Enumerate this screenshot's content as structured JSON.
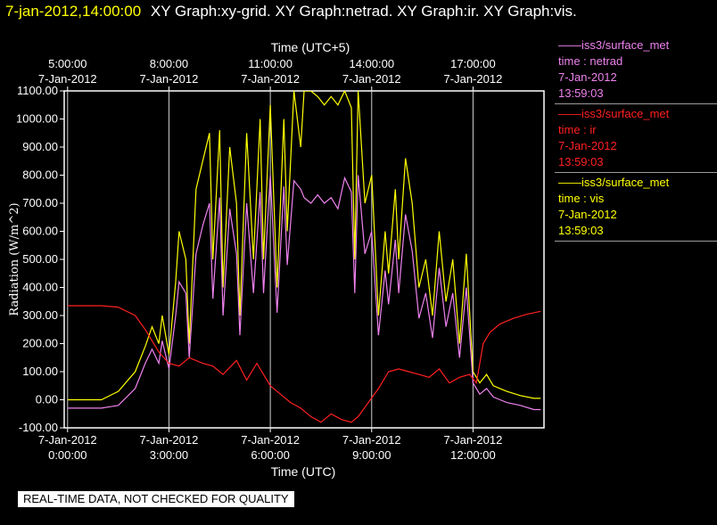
{
  "header": {
    "stamp": "7-jan-2012,14:00:00",
    "titles": "XY Graph:xy-grid.  XY Graph:netrad.  XY Graph:ir.  XY Graph:vis."
  },
  "notice": "REAL-TIME DATA, NOT CHECKED FOR QUALITY",
  "legend": [
    {
      "source": "iss3/surface_met",
      "variable": "time : netrad",
      "date": "7-Jan-2012",
      "time": "13:59:03",
      "color": "#ee82ee"
    },
    {
      "source": "iss3/surface_met",
      "variable": "time : ir",
      "date": "7-Jan-2012",
      "time": "13:59:03",
      "color": "#ff2020"
    },
    {
      "source": "iss3/surface_met",
      "variable": "time : vis",
      "date": "7-Jan-2012",
      "time": "13:59:03",
      "color": "#ffff00"
    }
  ],
  "chart_data": {
    "type": "line",
    "xlabel": "Time (UTC)",
    "x2label": "Time (UTC+5)",
    "ylabel": "Radiation (W/m^2)",
    "xlim": [
      -0.1,
      14.1
    ],
    "ylim": [
      -100,
      1100
    ],
    "grid": true,
    "x_ticks": [
      {
        "value": 0,
        "date": "7-Jan-2012",
        "time": "0:00:00"
      },
      {
        "value": 3,
        "date": "7-Jan-2012",
        "time": "3:00:00"
      },
      {
        "value": 6,
        "date": "7-Jan-2012",
        "time": "6:00:00"
      },
      {
        "value": 9,
        "date": "7-Jan-2012",
        "time": "9:00:00"
      },
      {
        "value": 12,
        "date": "7-Jan-2012",
        "time": "12:00:00"
      }
    ],
    "x2_ticks": [
      {
        "value": 0,
        "time": "5:00:00",
        "date": "7-Jan-2012"
      },
      {
        "value": 3,
        "time": "8:00:00",
        "date": "7-Jan-2012"
      },
      {
        "value": 6,
        "time": "11:00:00",
        "date": "7-Jan-2012"
      },
      {
        "value": 9,
        "time": "14:00:00",
        "date": "7-Jan-2012"
      },
      {
        "value": 12,
        "time": "17:00:00",
        "date": "7-Jan-2012"
      }
    ],
    "y_ticks": [
      "-100.00",
      "0.00",
      "100.00",
      "200.00",
      "300.00",
      "400.00",
      "500.00",
      "600.00",
      "700.00",
      "800.00",
      "900.00",
      "1000.00",
      "1100.00"
    ],
    "y_tick_values": [
      -100,
      0,
      100,
      200,
      300,
      400,
      500,
      600,
      700,
      800,
      900,
      1000,
      1100
    ],
    "series": [
      {
        "key": "vis",
        "color": "#ffff00",
        "x": [
          0,
          1,
          1.5,
          2,
          2.3,
          2.5,
          2.7,
          2.8,
          3.0,
          3.2,
          3.3,
          3.5,
          3.6,
          3.8,
          4.0,
          4.2,
          4.3,
          4.5,
          4.6,
          4.8,
          5.0,
          5.1,
          5.3,
          5.5,
          5.7,
          5.8,
          6.0,
          6.2,
          6.4,
          6.5,
          6.7,
          6.9,
          7.0,
          7.2,
          7.4,
          7.6,
          7.8,
          8.0,
          8.2,
          8.4,
          8.5,
          8.6,
          8.8,
          9.0,
          9.2,
          9.4,
          9.5,
          9.7,
          9.8,
          10.0,
          10.2,
          10.4,
          10.6,
          10.8,
          11.0,
          11.2,
          11.4,
          11.6,
          11.8,
          12.0,
          12.2,
          12.4,
          12.6,
          12.8,
          13.0,
          13.4,
          13.8,
          14.0
        ],
        "y": [
          0,
          0,
          30,
          100,
          190,
          260,
          200,
          300,
          160,
          420,
          600,
          500,
          200,
          750,
          850,
          950,
          500,
          960,
          400,
          900,
          700,
          300,
          950,
          500,
          1000,
          500,
          1050,
          400,
          1000,
          600,
          1100,
          900,
          1100,
          1100,
          1080,
          1050,
          1080,
          1050,
          1100,
          1040,
          500,
          1100,
          700,
          800,
          300,
          600,
          450,
          750,
          500,
          860,
          700,
          400,
          500,
          300,
          600,
          350,
          500,
          200,
          520,
          100,
          60,
          90,
          50,
          40,
          30,
          15,
          5,
          5
        ]
      },
      {
        "key": "netrad",
        "color": "#ee82ee",
        "x": [
          0,
          1,
          1.5,
          2,
          2.3,
          2.5,
          2.7,
          2.8,
          3.0,
          3.2,
          3.3,
          3.5,
          3.6,
          3.8,
          4.0,
          4.2,
          4.3,
          4.5,
          4.6,
          4.8,
          5.0,
          5.1,
          5.3,
          5.5,
          5.7,
          5.8,
          6.0,
          6.2,
          6.4,
          6.5,
          6.7,
          6.9,
          7.0,
          7.2,
          7.4,
          7.6,
          7.8,
          8.0,
          8.2,
          8.4,
          8.5,
          8.6,
          8.8,
          9.0,
          9.2,
          9.4,
          9.5,
          9.7,
          9.8,
          10.0,
          10.2,
          10.4,
          10.6,
          10.8,
          11.0,
          11.2,
          11.4,
          11.6,
          11.8,
          12.0,
          12.2,
          12.4,
          12.6,
          12.8,
          13.0,
          13.4,
          13.8,
          14.0
        ],
        "y": [
          -30,
          -30,
          -20,
          40,
          130,
          180,
          130,
          210,
          110,
          300,
          420,
          380,
          150,
          520,
          620,
          700,
          360,
          720,
          300,
          680,
          520,
          230,
          700,
          380,
          740,
          380,
          800,
          310,
          760,
          480,
          780,
          750,
          720,
          700,
          730,
          700,
          720,
          680,
          790,
          740,
          380,
          800,
          520,
          600,
          230,
          460,
          340,
          570,
          380,
          660,
          530,
          290,
          380,
          220,
          470,
          260,
          380,
          150,
          400,
          60,
          20,
          40,
          10,
          0,
          -10,
          -20,
          -35,
          -35
        ]
      },
      {
        "key": "ir",
        "color": "#ff2020",
        "x": [
          0,
          0.5,
          1,
          1.5,
          2,
          2.3,
          2.5,
          2.7,
          3,
          3.3,
          3.6,
          4,
          4.3,
          4.6,
          5,
          5.3,
          5.6,
          6,
          6.3,
          6.6,
          6.9,
          7.2,
          7.5,
          7.8,
          8.1,
          8.4,
          8.6,
          8.9,
          9.2,
          9.5,
          9.8,
          10.1,
          10.4,
          10.7,
          11,
          11.3,
          11.6,
          11.9,
          12.1,
          12.3,
          12.5,
          12.8,
          13.2,
          13.6,
          14
        ],
        "y": [
          335,
          335,
          335,
          330,
          300,
          250,
          210,
          170,
          130,
          120,
          150,
          130,
          120,
          90,
          140,
          70,
          130,
          50,
          20,
          -10,
          -30,
          -60,
          -80,
          -50,
          -70,
          -80,
          -60,
          -10,
          40,
          100,
          110,
          100,
          90,
          80,
          110,
          60,
          80,
          90,
          60,
          200,
          240,
          270,
          290,
          305,
          315
        ]
      }
    ]
  }
}
